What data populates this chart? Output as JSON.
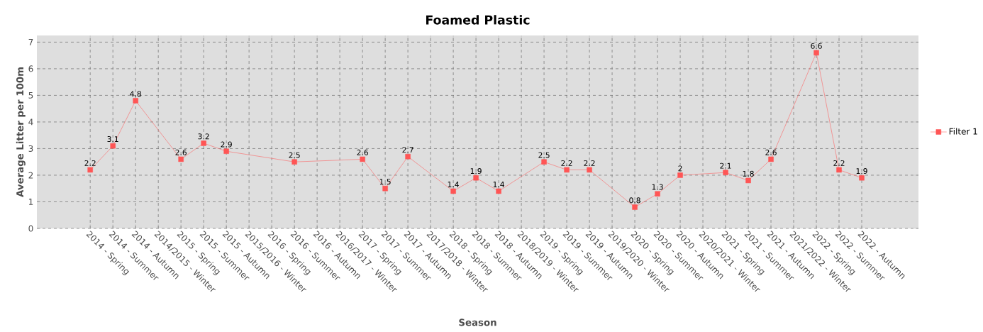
{
  "chart_data": {
    "type": "line",
    "title": "Foamed Plastic",
    "xlabel": "Season",
    "ylabel": "Average Litter per 100m",
    "categories": [
      "2014 - Spring",
      "2014 - Summer",
      "2014 - Autumn",
      "2014/2015 - Winter",
      "2015 - Spring",
      "2015 - Summer",
      "2015 - Autumn",
      "2015/2016 - Winter",
      "2016 - Spring",
      "2016 - Summer",
      "2016 - Autumn",
      "2016/2017 - Winter",
      "2017 - Spring",
      "2017 - Summer",
      "2017 - Autumn",
      "2017/2018 - Winter",
      "2018 - Spring",
      "2018 - Summer",
      "2018 - Autumn",
      "2018/2019 - Winter",
      "2019 - Spring",
      "2019 - Summer",
      "2019 - Autumn",
      "2019/2020 - Winter",
      "2020 - Spring",
      "2020 - Summer",
      "2020 - Autumn",
      "2020/2021 - Winter",
      "2021 - Spring",
      "2021 - Summer",
      "2021 - Autumn",
      "2021/2022 - Winter",
      "2022 - Spring",
      "2022 - Summer",
      "2022 - Autumn"
    ],
    "series": [
      {
        "name": "Filter 1",
        "color": "#ff5555",
        "values": [
          2.2,
          3.1,
          4.8,
          null,
          2.6,
          3.2,
          2.9,
          null,
          null,
          2.5,
          null,
          null,
          2.6,
          1.5,
          2.7,
          null,
          1.4,
          1.9,
          1.4,
          null,
          2.5,
          2.2,
          2.2,
          null,
          0.8,
          1.3,
          2,
          null,
          2.1,
          1.8,
          2.6,
          null,
          6.6,
          2.2,
          1.9
        ]
      }
    ],
    "ylim": [
      0,
      7.25
    ],
    "yticks": [
      0,
      1,
      2,
      3,
      4,
      5,
      6,
      7
    ],
    "grid": true,
    "legend": "right",
    "marker": "square",
    "line_style": "solid",
    "data_labels": true
  }
}
